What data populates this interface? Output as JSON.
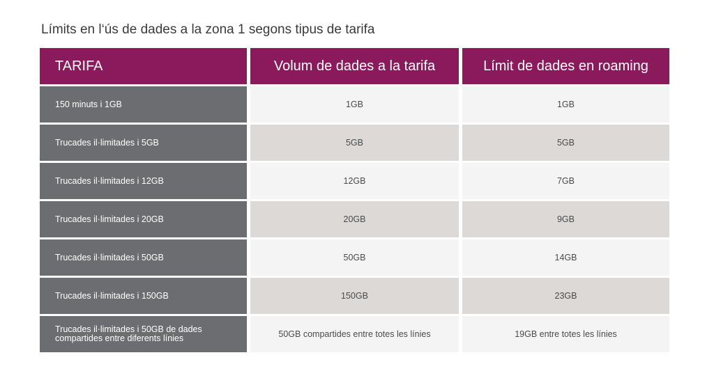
{
  "title": "Límits en l‘ús de dades a la zona 1 segons tipus de tarifa",
  "headers": [
    "TARIFA",
    "Volum de dades a la tarifa",
    "Límit de dades en roaming"
  ],
  "rows": [
    {
      "tarifa": "150 minuts i 1GB",
      "volum": "1GB",
      "roaming": "1GB"
    },
    {
      "tarifa": "Trucades il·limitades i 5GB",
      "volum": "5GB",
      "roaming": "5GB"
    },
    {
      "tarifa": "Trucades il·limitades i 12GB",
      "volum": "12GB",
      "roaming": "7GB"
    },
    {
      "tarifa": "Trucades il·limitades i 20GB",
      "volum": "20GB",
      "roaming": "9GB"
    },
    {
      "tarifa": "Trucades il·limitades i 50GB",
      "volum": "50GB",
      "roaming": "14GB"
    },
    {
      "tarifa": "Trucades il·limitades i 150GB",
      "volum": "150GB",
      "roaming": "23GB"
    },
    {
      "tarifa": "Trucades il·limitades i 50GB de dades compartides entre diferents línies",
      "volum": "50GB compartides entre totes les línies",
      "roaming": "19GB entre totes les línies"
    }
  ],
  "colors": {
    "header": "#8a1a5b",
    "name_col": "#6b6d70",
    "row_light": "#f4f4f4",
    "row_dark": "#ddd9d7"
  }
}
